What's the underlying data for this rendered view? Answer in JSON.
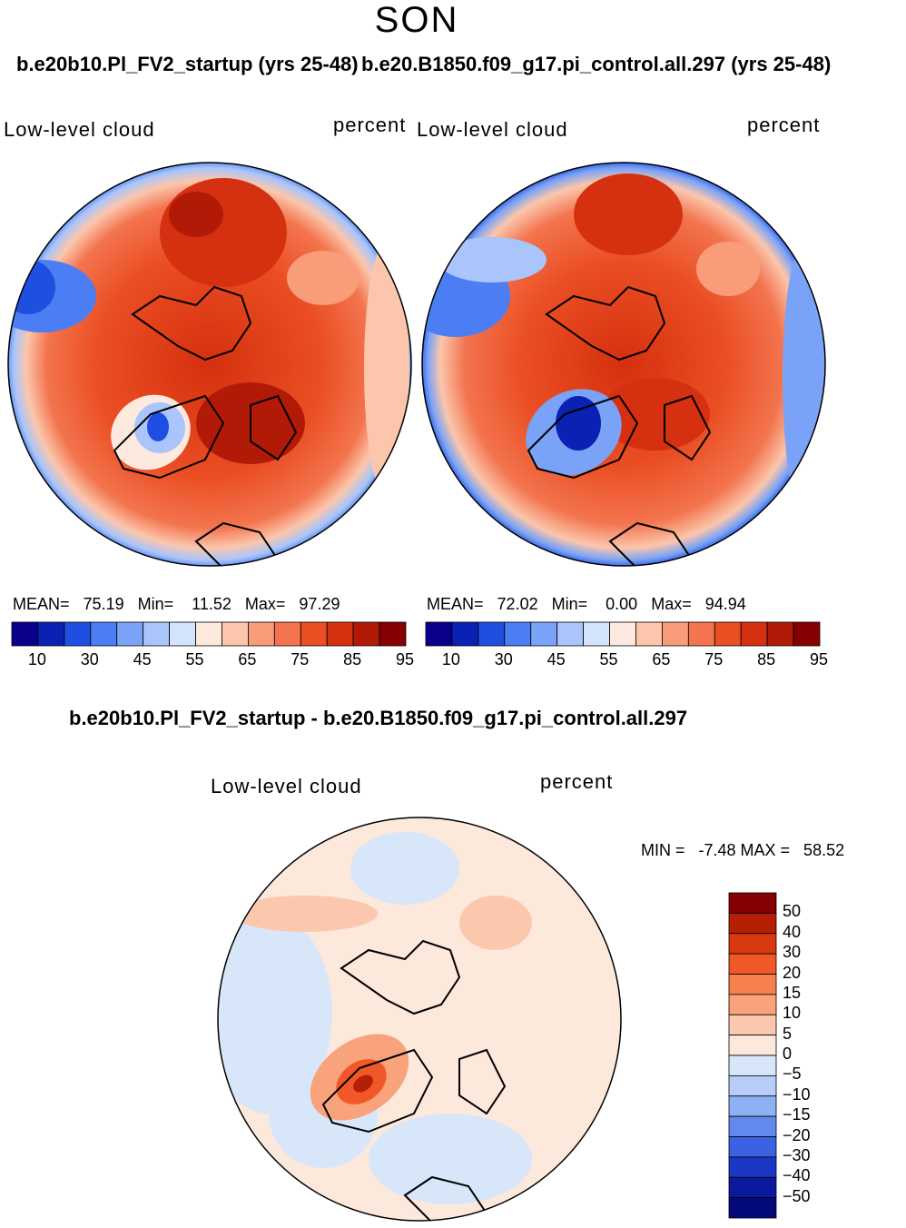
{
  "season": "SON",
  "panels": [
    {
      "title": "b.e20b10.Pl_FV2_startup (yrs 25-48)",
      "variable": "Low-level cloud",
      "units": "percent",
      "stats": {
        "mean_label": "MEAN=",
        "mean": "75.19",
        "min_label": "Min=",
        "min": "11.52",
        "max_label": "Max=",
        "max": "97.29"
      }
    },
    {
      "title": "b.e20.B1850.f09_g17.pi_control.all.297 (yrs 25-48)",
      "variable": "Low-level cloud",
      "units": "percent",
      "stats": {
        "mean_label": "MEAN=",
        "mean": "72.02",
        "min_label": "Min=",
        "min": "0.00",
        "max_label": "Max=",
        "max": "94.94"
      }
    }
  ],
  "diff_panel": {
    "title": "b.e20b10.Pl_FV2_startup - b.e20.B1850.f09_g17.pi_control.all.297",
    "variable": "Low-level cloud",
    "units": "percent",
    "minmax_text": "MIN =   -7.48 MAX =   58.52"
  },
  "chart_data": [
    {
      "type": "heatmap",
      "projection": "north-polar-stereographic",
      "title": "b.e20b10.Pl_FV2_startup (yrs 25-48)",
      "variable": "Low-level cloud",
      "units": "percent",
      "mean": 75.19,
      "min": 11.52,
      "max": 97.29,
      "colorbar_levels": [
        10,
        30,
        45,
        55,
        65,
        75,
        85,
        95
      ],
      "colorbar_tick_labels": [
        "10",
        "30",
        "45",
        "55",
        "65",
        "75",
        "85",
        "95"
      ]
    },
    {
      "type": "heatmap",
      "projection": "north-polar-stereographic",
      "title": "b.e20.B1850.f09_g17.pi_control.all.297 (yrs 25-48)",
      "variable": "Low-level cloud",
      "units": "percent",
      "mean": 72.02,
      "min": 0.0,
      "max": 94.94,
      "colorbar_levels": [
        10,
        30,
        45,
        55,
        65,
        75,
        85,
        95
      ],
      "colorbar_tick_labels": [
        "10",
        "30",
        "45",
        "55",
        "65",
        "75",
        "85",
        "95"
      ]
    },
    {
      "type": "heatmap",
      "projection": "north-polar-stereographic",
      "title": "b.e20b10.Pl_FV2_startup - b.e20.B1850.f09_g17.pi_control.all.297",
      "variable": "Low-level cloud",
      "units": "percent",
      "min": -7.48,
      "max": 58.52,
      "colorbar_tick_labels": [
        "50",
        "40",
        "30",
        "20",
        "15",
        "10",
        "5",
        "0",
        "−5",
        "−10",
        "−15",
        "−20",
        "−30",
        "−40",
        "−50"
      ]
    }
  ],
  "colors": {
    "abs_scale": [
      "#08008c",
      "#0a22b4",
      "#1f4fe0",
      "#4a7ef2",
      "#7aa3f7",
      "#a9c5fb",
      "#d3e3fb",
      "#fde9dd",
      "#fbc6ac",
      "#f89c7a",
      "#f3744e",
      "#ea4e23",
      "#d5300f",
      "#b21a08",
      "#850000"
    ],
    "diff_scale": [
      "#850000",
      "#b51f06",
      "#d9390f",
      "#f0582a",
      "#f6814f",
      "#f9a37c",
      "#fcc8ad",
      "#fde8dc",
      "#d7e6f8",
      "#b6cdf8",
      "#8eb0f5",
      "#6289ee",
      "#3a62e2",
      "#1a38c4",
      "#0a1a9e",
      "#050a7a"
    ]
  }
}
